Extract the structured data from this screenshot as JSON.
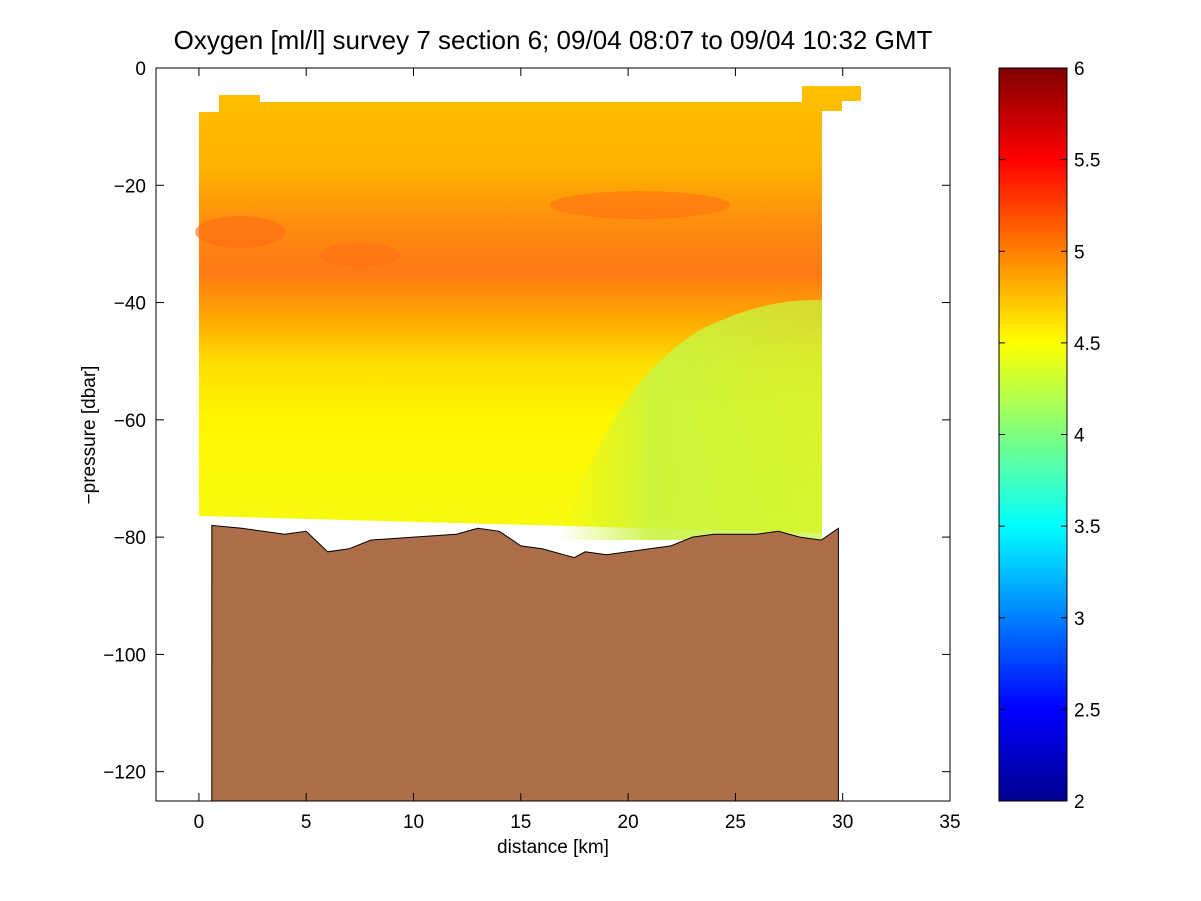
{
  "chart_data": {
    "type": "heatmap",
    "title": "Oxygen [ml/l] survey 7 section 6; 09/04 08:07 to 09/04 10:32 GMT",
    "xlabel": "distance [km]",
    "ylabel": "−pressure [dbar]",
    "xlim": [
      -2,
      35
    ],
    "ylim": [
      -125,
      0
    ],
    "xticks": [
      0,
      5,
      10,
      15,
      20,
      25,
      30,
      35
    ],
    "xtick_labels": [
      "0",
      "5",
      "10",
      "15",
      "20",
      "25",
      "30",
      "35"
    ],
    "yticks": [
      0,
      -20,
      -40,
      -60,
      -80,
      -100,
      -120
    ],
    "ytick_labels": [
      "0",
      "−20",
      "−40",
      "−60",
      "−80",
      "−100",
      "−120"
    ],
    "colorbar": {
      "colormap": "jet",
      "clim": [
        2,
        6
      ],
      "ticks": [
        2,
        2.5,
        3,
        3.5,
        4,
        4.5,
        5,
        5.5,
        6
      ],
      "tick_labels": [
        "2",
        "2.5",
        "3",
        "3.5",
        "4",
        "4.5",
        "5",
        "5.5",
        "6"
      ]
    },
    "grid": false,
    "data_extent": {
      "x": [
        0,
        29
      ],
      "top_pressure": -6,
      "bottom_pressure_approx": -78
    },
    "layers": [
      {
        "depth_range": [
          -6,
          -20
        ],
        "oxygen_ml_l": 4.8
      },
      {
        "depth_range": [
          -20,
          -38
        ],
        "oxygen_ml_l": 5.0
      },
      {
        "depth_range": [
          -38,
          -50
        ],
        "oxygen_ml_l": 4.7
      },
      {
        "depth_range": [
          -50,
          -80
        ],
        "oxygen_ml_l": 4.5
      }
    ],
    "bottom_profile": {
      "distance_km": [
        0.6,
        2,
        4,
        5,
        6,
        7,
        8,
        10,
        12,
        13,
        14,
        15,
        16,
        17,
        17.5,
        18,
        19,
        20,
        21,
        22,
        23,
        24,
        25,
        26,
        27,
        28,
        29,
        29.8
      ],
      "minus_pressure_dbar": [
        -78,
        -78.5,
        -79.5,
        -79,
        -82.5,
        -82,
        -80.5,
        -80,
        -79.5,
        -78.5,
        -79,
        -81.5,
        -82,
        -83,
        -83.5,
        -82.5,
        -83,
        -82.5,
        -82,
        -81.5,
        -80,
        -79.5,
        -79.5,
        -79.5,
        -79,
        -80,
        -80.5,
        -78.5
      ]
    },
    "seafloor_color": "#AC6E48"
  }
}
